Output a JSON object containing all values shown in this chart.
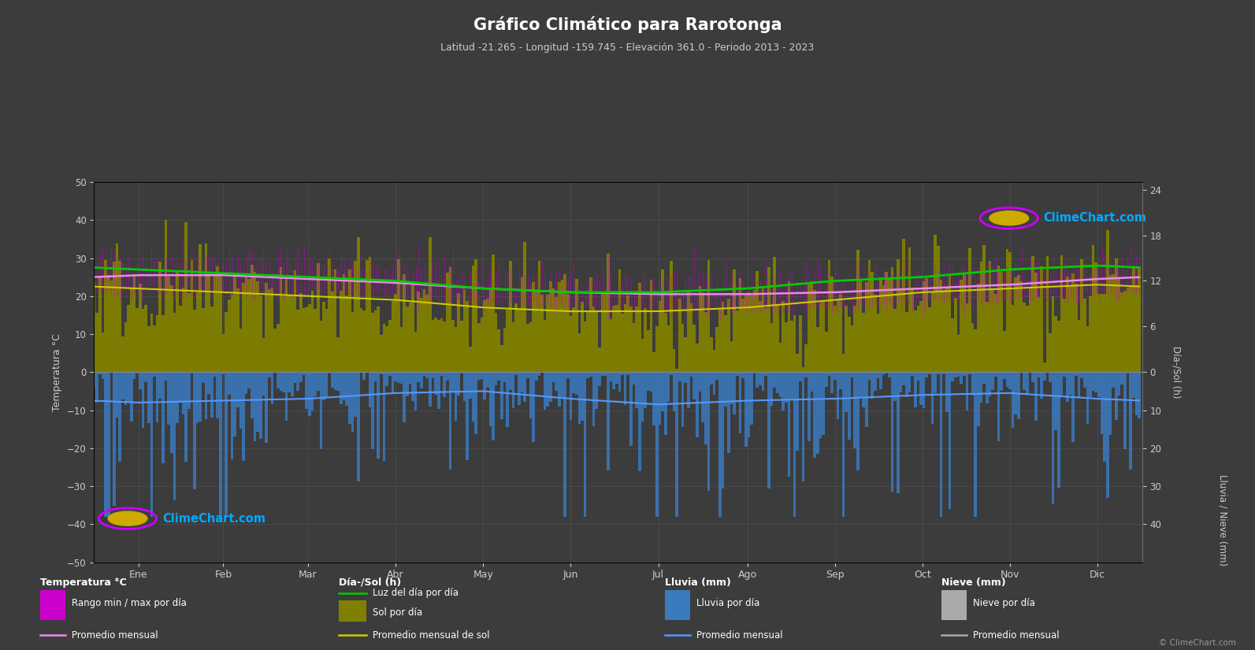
{
  "title": "Gráfico Climático para Rarotonga",
  "subtitle": "Latitud -21.265 - Longitud -159.745 - Elevación 361.0 - Periodo 2013 - 2023",
  "background_color": "#3c3c3c",
  "months": [
    "Ene",
    "Feb",
    "Mar",
    "Abr",
    "May",
    "Jun",
    "Jul",
    "Ago",
    "Sep",
    "Oct",
    "Nov",
    "Dic"
  ],
  "temp_ylim": [
    -50,
    50
  ],
  "temp_max_daily": [
    30,
    30,
    29,
    28,
    26,
    24,
    24,
    24,
    25,
    26,
    27,
    29
  ],
  "temp_min_daily": [
    22,
    22,
    22,
    21,
    19,
    18,
    17,
    17,
    18,
    19,
    20,
    21
  ],
  "temp_avg_monthly": [
    25.5,
    25.5,
    24.5,
    23.5,
    22.0,
    21.0,
    20.5,
    20.5,
    21.0,
    22.0,
    23.0,
    24.5
  ],
  "sun_hours_monthly": [
    11.0,
    10.5,
    10.0,
    9.5,
    8.5,
    8.0,
    8.0,
    8.5,
    9.5,
    10.5,
    11.0,
    11.5
  ],
  "daylight_monthly": [
    13.5,
    13.0,
    12.5,
    12.0,
    11.0,
    10.5,
    10.5,
    11.0,
    12.0,
    12.5,
    13.5,
    14.0
  ],
  "rain_monthly_avg": [
    8.0,
    7.5,
    7.0,
    5.5,
    5.0,
    7.0,
    8.5,
    7.5,
    7.0,
    6.0,
    5.5,
    7.0
  ],
  "days_per_month": [
    31,
    28,
    31,
    30,
    31,
    30,
    31,
    31,
    30,
    31,
    30,
    31
  ],
  "ylabel_left": "Temperatura °C",
  "ylabel_right_top": "Día-/Sol (h)",
  "ylabel_right_bot": "Lluvia / Nieve (mm)",
  "grid_color": "#555555",
  "rain_bar_color": "#3a7abf",
  "temp_range_color": "#cc00cc",
  "temp_avg_color": "#ee88ee",
  "sun_bar_color": "#808000",
  "sun_line_color": "#cccc00",
  "daylight_line_color": "#00cc00",
  "rain_avg_line_color": "#5599ff",
  "tick_color": "#cccccc",
  "brand_color": "#00aaff",
  "watermark_text": "ClimeChart.com",
  "sun_scale": 50,
  "rain_scale": 5
}
